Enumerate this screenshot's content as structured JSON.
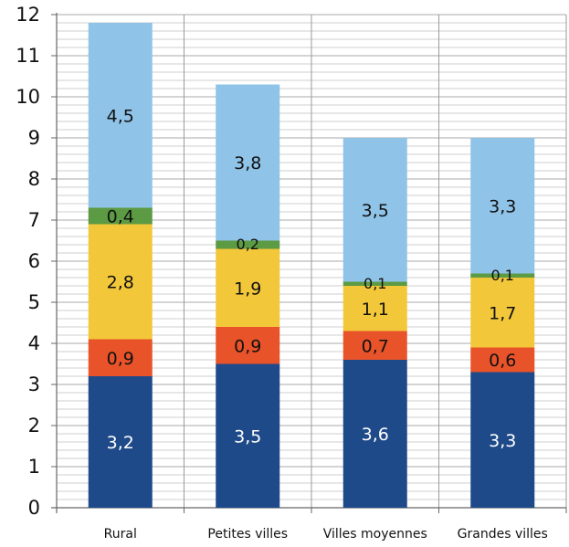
{
  "chart_data": {
    "type": "bar",
    "stacked": true,
    "categories": [
      "Rural",
      "Petites villes",
      "Villes moyennes",
      "Grandes villes"
    ],
    "series": [
      {
        "values": [
          3.2,
          3.5,
          3.6,
          3.3
        ],
        "color": "#1f4a8a",
        "label_color": "#ffffff",
        "labels": [
          "3,2",
          "3,5",
          "3,6",
          "3,3"
        ]
      },
      {
        "values": [
          0.9,
          0.9,
          0.7,
          0.6
        ],
        "color": "#e8532a",
        "label_color": "#111111",
        "labels": [
          "0,9",
          "0,9",
          "0,7",
          "0,6"
        ]
      },
      {
        "values": [
          2.8,
          1.9,
          1.1,
          1.7
        ],
        "color": "#f3c73a",
        "label_color": "#111111",
        "labels": [
          "2,8",
          "1,9",
          "1,1",
          "1,7"
        ]
      },
      {
        "values": [
          0.4,
          0.2,
          0.1,
          0.1
        ],
        "color": "#5c9a43",
        "label_color": "#111111",
        "labels": [
          "0,4",
          "0,2",
          "0,1",
          "0,1"
        ]
      },
      {
        "values": [
          4.5,
          3.8,
          3.5,
          3.3
        ],
        "color": "#8fc3e8",
        "label_color": "#111111",
        "labels": [
          "4,5",
          "3,8",
          "3,5",
          "3,3"
        ]
      }
    ],
    "y_ticks": [
      "0",
      "1",
      "2",
      "3",
      "4",
      "5",
      "6",
      "7",
      "8",
      "9",
      "10",
      "11",
      "12"
    ],
    "ylim": [
      0,
      12
    ],
    "grid": true,
    "grid_minor": true,
    "legend": "none",
    "title": "",
    "xlabel": "",
    "ylabel": ""
  }
}
